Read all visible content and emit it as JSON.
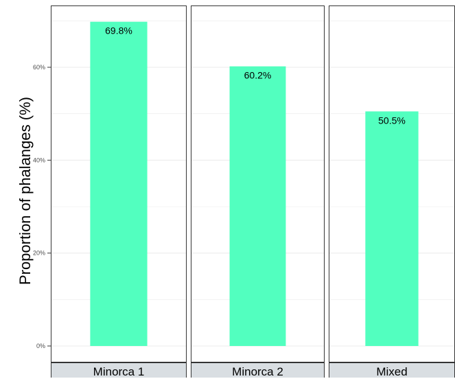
{
  "chart_data": {
    "type": "bar",
    "ylabel": "Proportion of phalanges (%)",
    "ylim": [
      0,
      70
    ],
    "y_ticks": [
      "0%",
      "20%",
      "40%",
      "60%"
    ],
    "y_tick_values": [
      0,
      20,
      40,
      60
    ],
    "grid": true,
    "facets": [
      {
        "name": "Minorca 1",
        "value": 69.8,
        "label": "69.8%"
      },
      {
        "name": "Minorca 2",
        "value": 60.2,
        "label": "60.2%"
      },
      {
        "name": "Mixed",
        "value": 50.5,
        "label": "50.5%"
      }
    ],
    "colors": {
      "bar": "#52FFBF",
      "panel_border": "#333333",
      "strip_fill": "#D9DEE2",
      "grid": "#EBEBEB",
      "tick_text": "#4D4D4D",
      "text": "#000000"
    }
  }
}
